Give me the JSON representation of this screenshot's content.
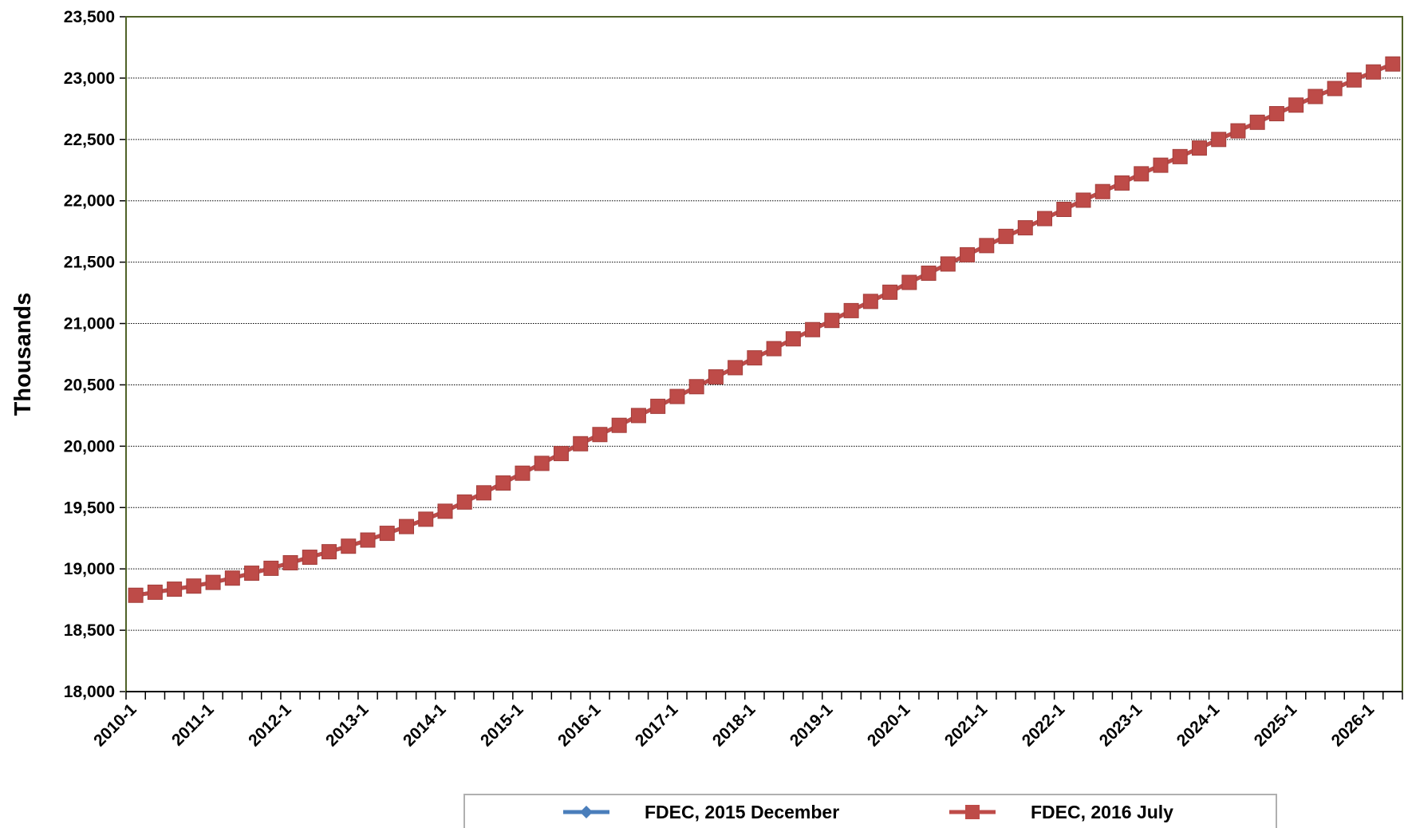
{
  "chart_data": {
    "type": "line",
    "title": "",
    "xlabel": "",
    "ylabel": "Thousands",
    "ylim": [
      18000,
      23500
    ],
    "y_ticks": [
      "18,000",
      "18,500",
      "19,000",
      "19,500",
      "20,000",
      "20,500",
      "21,000",
      "21,500",
      "22,000",
      "22,500",
      "23,000",
      "23,500"
    ],
    "x_ticks": [
      "2010-1",
      "2011-1",
      "2012-1",
      "2013-1",
      "2014-1",
      "2015-1",
      "2016-1",
      "2017-1",
      "2018-1",
      "2019-1",
      "2020-1",
      "2021-1",
      "2022-1",
      "2023-1",
      "2024-1",
      "2025-1",
      "2026-1"
    ],
    "x_start": "2010-1",
    "x_frequency": "quarterly",
    "grid": "horizontal",
    "legend_position": "bottom",
    "colors": {
      "plot_border": "#4f6228",
      "gridline": "#000000"
    },
    "series": [
      {
        "name": "FDEC, 2015 December",
        "color": "#4a7ebb",
        "marker": "diamond",
        "values": [
          18785,
          18810,
          18835,
          18860,
          18890,
          18925,
          18965,
          19005,
          19050,
          19095,
          19140,
          19185,
          19235,
          19290,
          19345,
          19405,
          19470,
          19545,
          19620,
          19700,
          19780,
          19860,
          19940,
          20020,
          20095,
          20170,
          20250,
          20325,
          20405,
          20485,
          20565,
          20640,
          20720,
          20795,
          20875,
          20950,
          21025,
          21105,
          21180,
          21255,
          21335,
          21410,
          21485,
          21560,
          21635,
          21710,
          21780,
          21855,
          21930,
          22005,
          22075,
          22145,
          22220,
          22290,
          22360,
          22430,
          22500,
          22570,
          22640,
          22710,
          22780,
          22850,
          22915,
          22985,
          23050,
          23115
        ]
      },
      {
        "name": "FDEC, 2016 July",
        "color": "#be4b48",
        "marker": "square",
        "values": [
          18785,
          18810,
          18835,
          18860,
          18890,
          18925,
          18965,
          19005,
          19050,
          19095,
          19140,
          19185,
          19235,
          19290,
          19345,
          19405,
          19470,
          19545,
          19620,
          19700,
          19780,
          19860,
          19940,
          20020,
          20095,
          20170,
          20250,
          20325,
          20405,
          20485,
          20565,
          20640,
          20720,
          20795,
          20875,
          20950,
          21025,
          21105,
          21180,
          21255,
          21335,
          21410,
          21485,
          21560,
          21635,
          21710,
          21780,
          21855,
          21930,
          22005,
          22075,
          22145,
          22220,
          22290,
          22360,
          22430,
          22500,
          22570,
          22640,
          22710,
          22780,
          22850,
          22915,
          22985,
          23050,
          23115
        ]
      }
    ]
  }
}
